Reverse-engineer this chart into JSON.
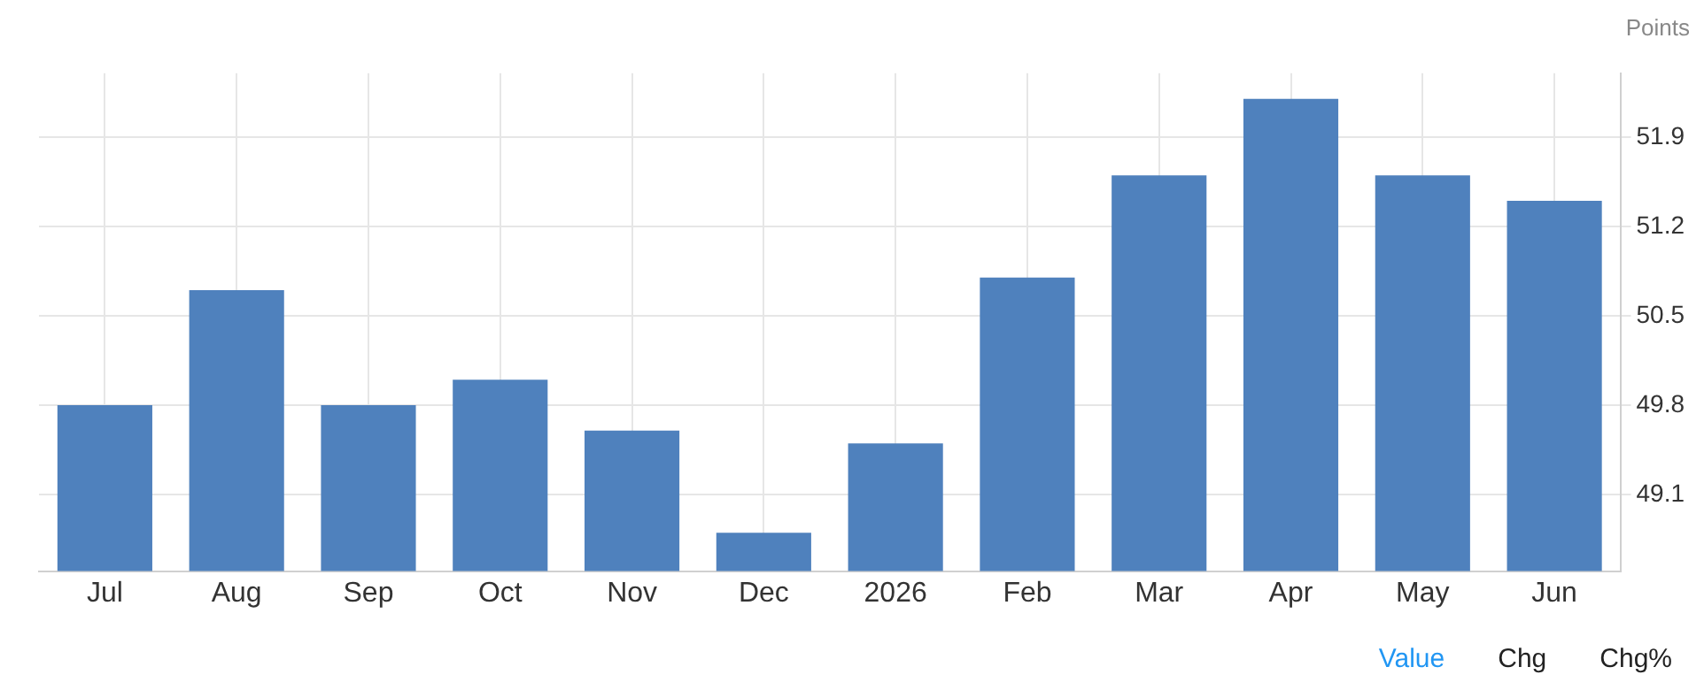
{
  "chart_data": {
    "type": "bar",
    "ylabel": "Points",
    "categories": [
      "Jul",
      "Aug",
      "Sep",
      "Oct",
      "Nov",
      "Dec",
      "2026",
      "Feb",
      "Mar",
      "Apr",
      "May",
      "Jun"
    ],
    "values": [
      49.8,
      50.7,
      49.8,
      50.0,
      49.6,
      48.8,
      49.5,
      50.8,
      51.6,
      52.2,
      51.6,
      51.4
    ],
    "color": "#4f81bd",
    "ylim": [
      48.5,
      52.4
    ],
    "yticks": [
      49.1,
      49.8,
      50.5,
      51.2,
      51.9
    ],
    "grid": true,
    "annotations": [
      "Value",
      "Chg",
      "Chg%"
    ]
  }
}
